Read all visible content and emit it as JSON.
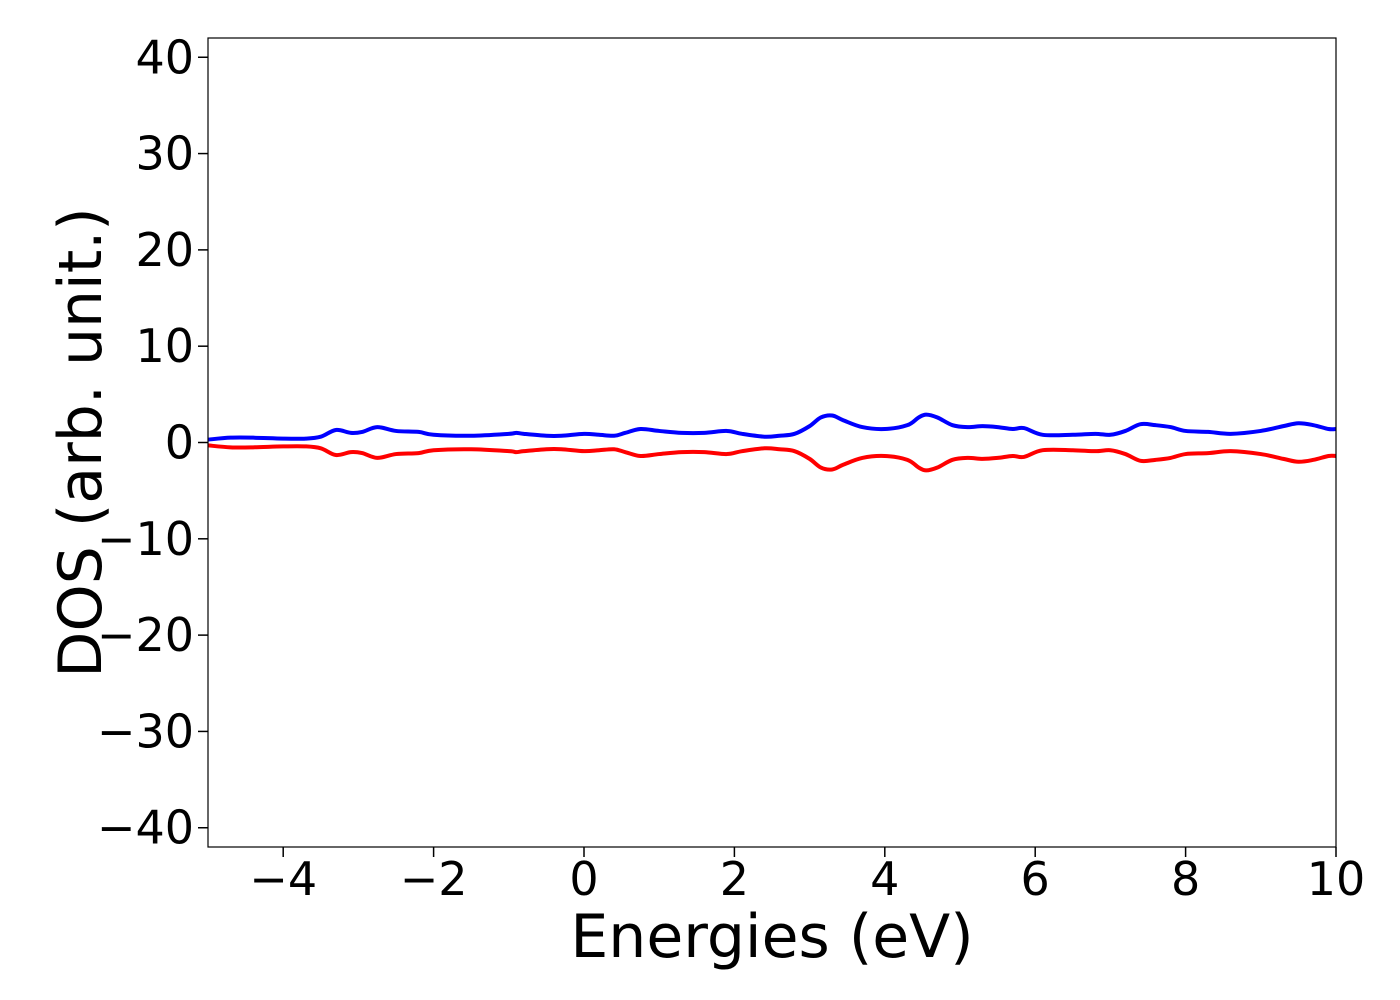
{
  "chart_data": {
    "type": "line",
    "title": "",
    "xlabel": "Energies (eV)",
    "ylabel": "DOS (arb. unit.)",
    "xlim": [
      -5,
      10
    ],
    "ylim": [
      -42,
      42
    ],
    "xticks": [
      -4,
      -2,
      0,
      2,
      4,
      6,
      8,
      10
    ],
    "xtick_labels": [
      "−4",
      "−2",
      "0",
      "2",
      "4",
      "6",
      "8",
      "10"
    ],
    "yticks": [
      40,
      30,
      20,
      10,
      0,
      -10,
      -20,
      -30,
      -40
    ],
    "ytick_labels": [
      "40",
      "30",
      "20",
      "10",
      "0",
      "−10",
      "−20",
      "−30",
      "−40"
    ],
    "grid": false,
    "legend": "none",
    "series": [
      {
        "color": "#0000ff",
        "x": [
          -5.0,
          -4.7,
          -4.4,
          -4.0,
          -3.7,
          -3.5,
          -3.3,
          -3.1,
          -2.95,
          -2.75,
          -2.5,
          -2.2,
          -2.0,
          -1.5,
          -1.0,
          -0.9,
          -0.8,
          -0.5,
          -0.3,
          0.0,
          0.2,
          0.4,
          0.55,
          0.75,
          1.0,
          1.3,
          1.6,
          1.9,
          2.1,
          2.4,
          2.6,
          2.8,
          3.0,
          3.15,
          3.3,
          3.45,
          3.7,
          4.0,
          4.3,
          4.45,
          4.55,
          4.7,
          4.9,
          5.1,
          5.3,
          5.5,
          5.7,
          5.85,
          6.1,
          6.5,
          6.8,
          7.0,
          7.2,
          7.4,
          7.6,
          7.8,
          8.0,
          8.3,
          8.6,
          9.0,
          9.3,
          9.5,
          9.7,
          9.9,
          10.0
        ],
        "y": [
          0.3,
          0.5,
          0.5,
          0.4,
          0.4,
          0.6,
          1.3,
          1.0,
          1.1,
          1.6,
          1.2,
          1.1,
          0.8,
          0.7,
          0.9,
          1.0,
          0.9,
          0.7,
          0.7,
          0.9,
          0.8,
          0.7,
          1.0,
          1.4,
          1.2,
          1.0,
          1.0,
          1.2,
          0.9,
          0.6,
          0.7,
          0.9,
          1.7,
          2.6,
          2.8,
          2.3,
          1.6,
          1.4,
          1.8,
          2.6,
          2.9,
          2.6,
          1.8,
          1.6,
          1.7,
          1.6,
          1.4,
          1.5,
          0.8,
          0.8,
          0.9,
          0.8,
          1.2,
          1.9,
          1.8,
          1.6,
          1.2,
          1.1,
          0.9,
          1.2,
          1.7,
          2.0,
          1.8,
          1.4,
          1.4
        ]
      },
      {
        "color": "#ff0000",
        "x": [
          -5.0,
          -4.7,
          -4.4,
          -4.0,
          -3.7,
          -3.5,
          -3.3,
          -3.1,
          -2.95,
          -2.75,
          -2.5,
          -2.2,
          -2.0,
          -1.5,
          -1.0,
          -0.9,
          -0.8,
          -0.5,
          -0.3,
          0.0,
          0.2,
          0.4,
          0.55,
          0.75,
          1.0,
          1.3,
          1.6,
          1.9,
          2.1,
          2.4,
          2.6,
          2.8,
          3.0,
          3.15,
          3.3,
          3.45,
          3.7,
          4.0,
          4.3,
          4.45,
          4.55,
          4.7,
          4.9,
          5.1,
          5.3,
          5.5,
          5.7,
          5.85,
          6.1,
          6.5,
          6.8,
          7.0,
          7.2,
          7.4,
          7.6,
          7.8,
          8.0,
          8.3,
          8.6,
          9.0,
          9.3,
          9.5,
          9.7,
          9.9,
          10.0
        ],
        "y": [
          -0.3,
          -0.5,
          -0.5,
          -0.4,
          -0.4,
          -0.6,
          -1.3,
          -1.0,
          -1.1,
          -1.6,
          -1.2,
          -1.1,
          -0.8,
          -0.7,
          -0.9,
          -1.0,
          -0.9,
          -0.7,
          -0.7,
          -0.9,
          -0.8,
          -0.7,
          -1.0,
          -1.4,
          -1.2,
          -1.0,
          -1.0,
          -1.2,
          -0.9,
          -0.6,
          -0.7,
          -0.9,
          -1.7,
          -2.6,
          -2.8,
          -2.3,
          -1.6,
          -1.4,
          -1.8,
          -2.6,
          -2.9,
          -2.6,
          -1.8,
          -1.6,
          -1.7,
          -1.6,
          -1.4,
          -1.5,
          -0.8,
          -0.8,
          -0.9,
          -0.8,
          -1.2,
          -1.9,
          -1.8,
          -1.6,
          -1.2,
          -1.1,
          -0.9,
          -1.2,
          -1.7,
          -2.0,
          -1.8,
          -1.4,
          -1.4
        ]
      }
    ]
  }
}
